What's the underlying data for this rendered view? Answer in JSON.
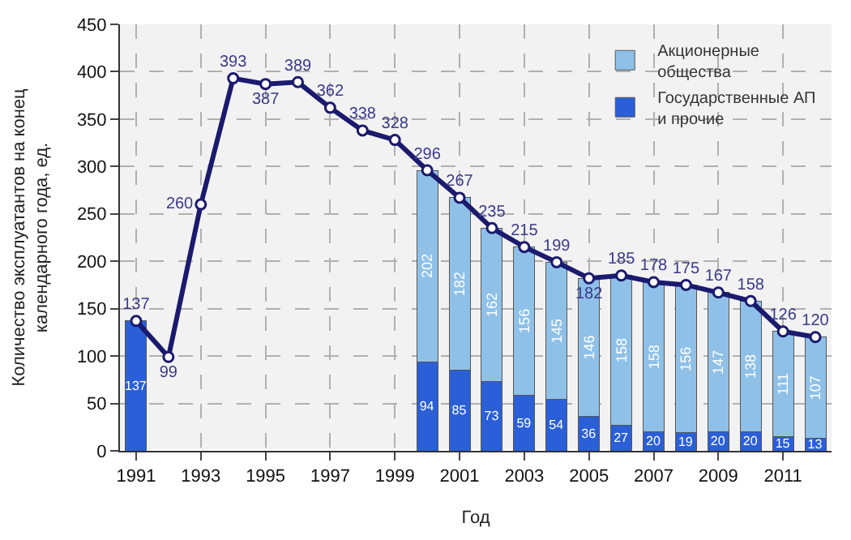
{
  "chart_data": {
    "type": "bar",
    "stacked": true,
    "xlabel": "Год",
    "ylabel": "Количество эксплуатантов на конец календарного года, ед.",
    "x": [
      1991,
      1992,
      1993,
      1994,
      1995,
      1996,
      1997,
      1998,
      1999,
      2000,
      2001,
      2002,
      2003,
      2004,
      2005,
      2006,
      2007,
      2008,
      2009,
      2010,
      2011,
      2012
    ],
    "series": [
      {
        "name": "Государственные АП и прочие",
        "color": "#2a5fd8",
        "values": [
          137,
          null,
          null,
          null,
          null,
          null,
          null,
          null,
          null,
          94,
          85,
          73,
          59,
          54,
          36,
          27,
          20,
          19,
          20,
          20,
          15,
          13
        ]
      },
      {
        "name": "Акционерные общества",
        "color": "#8fc1e8",
        "values": [
          null,
          null,
          null,
          null,
          null,
          null,
          null,
          null,
          null,
          202,
          182,
          162,
          156,
          145,
          146,
          158,
          158,
          156,
          147,
          138,
          111,
          107
        ]
      },
      {
        "type": "line",
        "color": "#1a1a6e",
        "marker": "circle",
        "values": [
          137,
          99,
          260,
          393,
          387,
          389,
          362,
          338,
          328,
          296,
          267,
          235,
          215,
          199,
          182,
          185,
          178,
          175,
          167,
          158,
          126,
          120
        ]
      }
    ],
    "xlim": [
      1990.5,
      2012.5
    ],
    "xticks": [
      1991,
      1993,
      1995,
      1997,
      1999,
      2001,
      2003,
      2005,
      2007,
      2009,
      2011
    ],
    "ylim": [
      0,
      450
    ],
    "yticks": [
      0,
      50,
      100,
      150,
      200,
      250,
      300,
      350,
      400,
      450
    ],
    "grid": true,
    "legend": "top right",
    "data_labels": true
  }
}
